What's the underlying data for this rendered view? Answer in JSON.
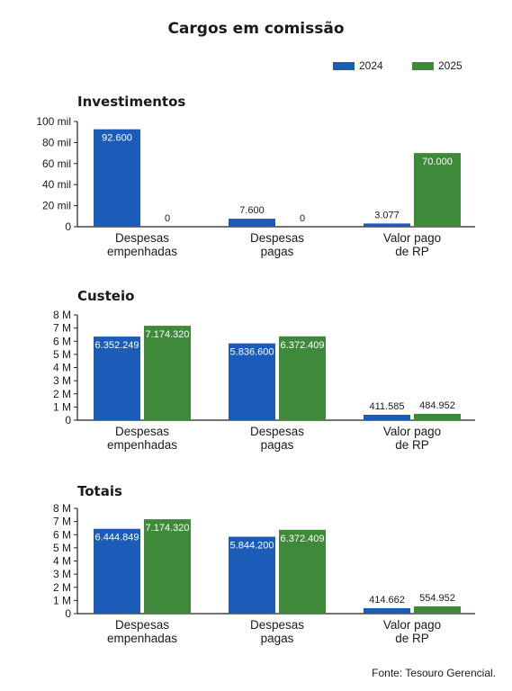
{
  "title": "Cargos em comissão",
  "source": "Fonte: Tesouro Gerencial.",
  "legend": {
    "items": [
      {
        "label": "2024",
        "color": "#1a5cb8"
      },
      {
        "label": "2025",
        "color": "#3f8a3a"
      }
    ]
  },
  "chart_data": [
    {
      "type": "bar",
      "title": "Investimentos",
      "categories": [
        [
          "Despesas",
          "empenhadas"
        ],
        [
          "Despesas",
          "pagas"
        ],
        [
          "Valor pago",
          "de RP"
        ]
      ],
      "series": [
        {
          "name": "2024",
          "values": [
            92600,
            7600,
            3077
          ],
          "labels": [
            "92.600",
            "7.600",
            "3.077"
          ]
        },
        {
          "name": "2025",
          "values": [
            0,
            0,
            70000
          ],
          "labels": [
            "0",
            "0",
            "70.000"
          ]
        }
      ],
      "ylim": [
        0,
        100000
      ],
      "yticks": [
        0,
        20000,
        40000,
        60000,
        80000,
        100000
      ],
      "ytick_labels": [
        "0",
        "20 mil",
        "40 mil",
        "60 mil",
        "80 mil",
        "100 mil"
      ]
    },
    {
      "type": "bar",
      "title": "Custeio",
      "categories": [
        [
          "Despesas",
          "empenhadas"
        ],
        [
          "Despesas",
          "pagas"
        ],
        [
          "Valor pago",
          "de RP"
        ]
      ],
      "series": [
        {
          "name": "2024",
          "values": [
            6352249,
            5836600,
            411585
          ],
          "labels": [
            "6.352.249",
            "5.836.600",
            "411.585"
          ]
        },
        {
          "name": "2025",
          "values": [
            7174320,
            6372409,
            484952
          ],
          "labels": [
            "7.174.320",
            "6.372.409",
            "484.952"
          ]
        }
      ],
      "ylim": [
        0,
        8000000
      ],
      "yticks": [
        0,
        1000000,
        2000000,
        3000000,
        4000000,
        5000000,
        6000000,
        7000000,
        8000000
      ],
      "ytick_labels": [
        "0",
        "1 M",
        "2 M",
        "3 M",
        "4 M",
        "5 M",
        "6 M",
        "7 M",
        "8 M"
      ]
    },
    {
      "type": "bar",
      "title": "Totais",
      "categories": [
        [
          "Despesas",
          "empenhadas"
        ],
        [
          "Despesas",
          "pagas"
        ],
        [
          "Valor pago",
          "de RP"
        ]
      ],
      "series": [
        {
          "name": "2024",
          "values": [
            6444849,
            5844200,
            414662
          ],
          "labels": [
            "6.444.849",
            "5.844.200",
            "414.662"
          ]
        },
        {
          "name": "2025",
          "values": [
            7174320,
            6372409,
            554952
          ],
          "labels": [
            "7.174.320",
            "6.372.409",
            "554.952"
          ]
        }
      ],
      "ylim": [
        0,
        8000000
      ],
      "yticks": [
        0,
        1000000,
        2000000,
        3000000,
        4000000,
        5000000,
        6000000,
        7000000,
        8000000
      ],
      "ytick_labels": [
        "0",
        "1 M",
        "2 M",
        "3 M",
        "4 M",
        "5 M",
        "6 M",
        "7 M",
        "8 M"
      ]
    }
  ]
}
